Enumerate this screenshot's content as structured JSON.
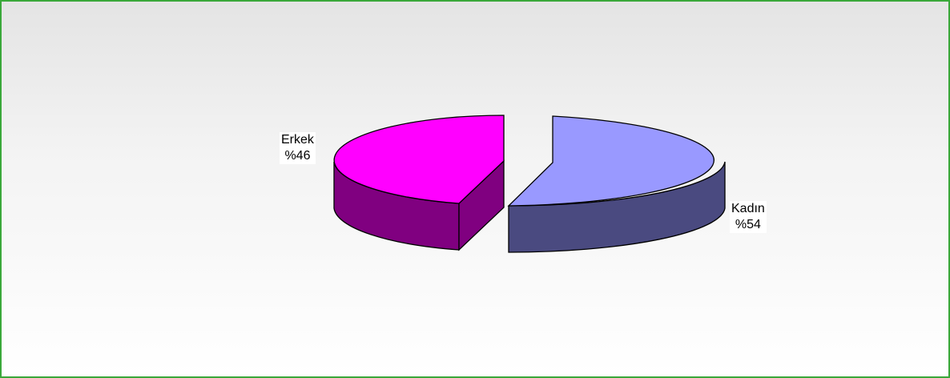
{
  "chart_data": {
    "type": "pie",
    "style": "3d-exploded",
    "slices": [
      {
        "label": "Erkek",
        "value": 46,
        "display": "%46",
        "top_color": "#ff00ff",
        "side_color": "#800080"
      },
      {
        "label": "Kadın",
        "value": 54,
        "display": "%54",
        "top_color": "#9999ff",
        "side_color": "#4a4a80"
      }
    ],
    "legend": "none",
    "frame_border_color": "#3aa83a"
  }
}
